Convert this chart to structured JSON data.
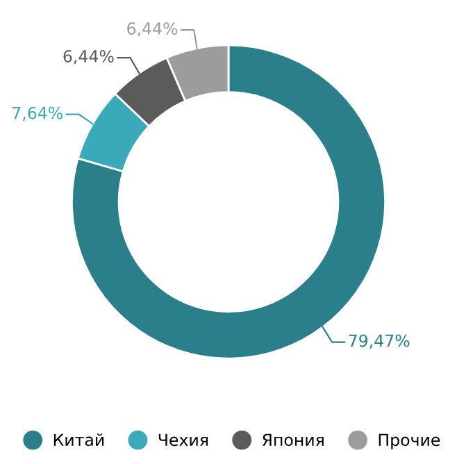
{
  "chart_data": {
    "type": "donut",
    "categories": [
      "Китай",
      "Чехия",
      "Япония",
      "Прочие"
    ],
    "values": [
      79.47,
      7.64,
      6.44,
      6.44
    ],
    "colors": [
      "#2b7f8a",
      "#3aa9b9",
      "#5b5b5b",
      "#9c9c9c"
    ],
    "value_labels": [
      "79,47%",
      "7,64%",
      "6,44%",
      "6,44%"
    ],
    "legend": "bottom"
  }
}
